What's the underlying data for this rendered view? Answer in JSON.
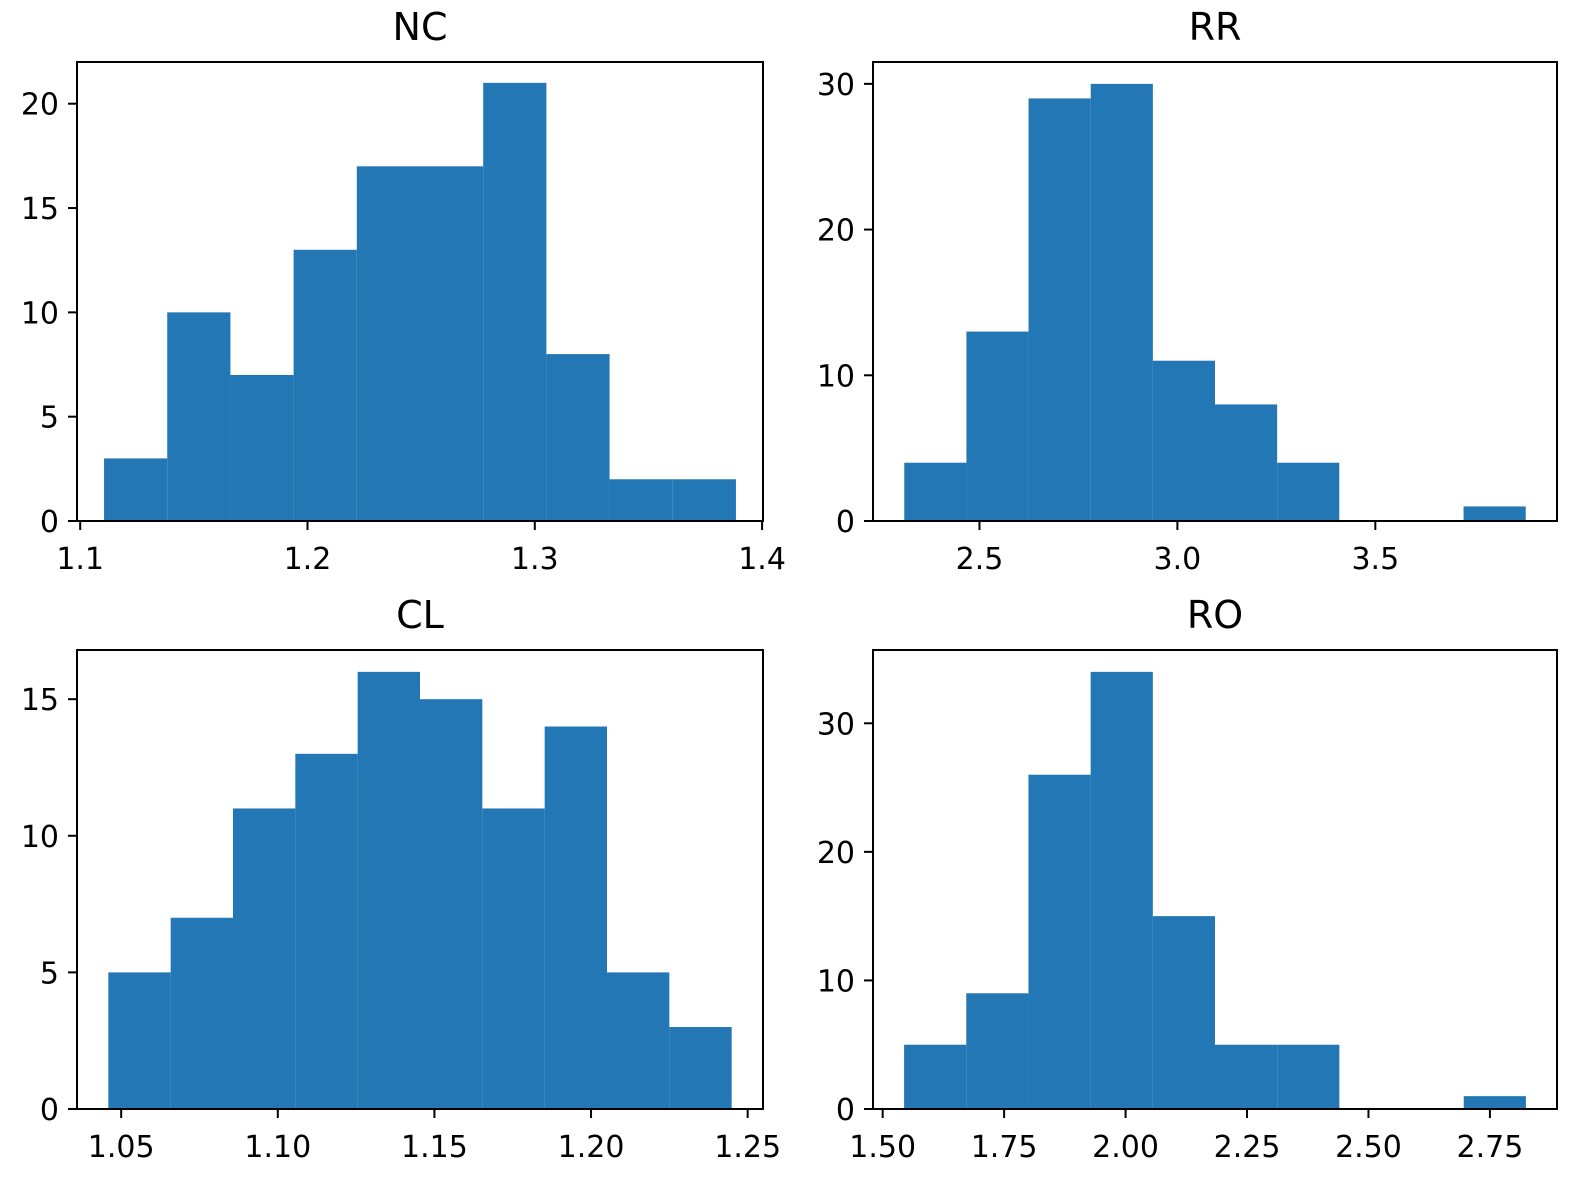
{
  "chart_data": [
    {
      "type": "bar",
      "title": "NC",
      "bin_edges": [
        1.1105,
        1.1383,
        1.1661,
        1.1939,
        1.2217,
        1.2495,
        1.2773,
        1.3051,
        1.3329,
        1.3607,
        1.3885
      ],
      "values": [
        3,
        10,
        7,
        13,
        17,
        17,
        21,
        8,
        2,
        2
      ],
      "xlim": [
        1.0986,
        1.4004
      ],
      "ylim": [
        0,
        22
      ],
      "xticks": [
        1.1,
        1.2,
        1.3,
        1.4
      ],
      "xtick_labels": [
        "1.1",
        "1.2",
        "1.3",
        "1.4"
      ],
      "yticks": [
        0,
        5,
        10,
        15,
        20
      ],
      "ytick_labels": [
        "0",
        "5",
        "10",
        "15",
        "20"
      ],
      "color": "#2277b4"
    },
    {
      "type": "bar",
      "title": "RR",
      "bin_edges": [
        2.31,
        2.467,
        2.624,
        2.781,
        2.938,
        3.095,
        3.252,
        3.409,
        3.566,
        3.723,
        3.88
      ],
      "values": [
        4,
        13,
        29,
        30,
        11,
        8,
        4,
        0,
        0,
        1
      ],
      "xlim": [
        2.231,
        3.959
      ],
      "ylim": [
        0,
        31.5
      ],
      "xticks": [
        2.5,
        3.0,
        3.5
      ],
      "xtick_labels": [
        "2.5",
        "3.0",
        "3.5"
      ],
      "yticks": [
        0,
        10,
        20,
        30
      ],
      "ytick_labels": [
        "0",
        "10",
        "20",
        "30"
      ],
      "color": "#2277b4"
    },
    {
      "type": "bar",
      "title": "CL",
      "bin_edges": [
        1.0459,
        1.0658,
        1.0857,
        1.1056,
        1.1255,
        1.1454,
        1.1653,
        1.1852,
        1.2051,
        1.225,
        1.2449
      ],
      "values": [
        5,
        7,
        11,
        13,
        16,
        15,
        11,
        14,
        5,
        3
      ],
      "xlim": [
        1.0359,
        1.2549
      ],
      "ylim": [
        0,
        16.8
      ],
      "xticks": [
        1.05,
        1.1,
        1.15,
        1.2,
        1.25
      ],
      "xtick_labels": [
        "1.05",
        "1.10",
        "1.15",
        "1.20",
        "1.25"
      ],
      "yticks": [
        0,
        5,
        10,
        15
      ],
      "ytick_labels": [
        "0",
        "5",
        "10",
        "15"
      ],
      "color": "#2277b4"
    },
    {
      "type": "bar",
      "title": "RO",
      "bin_edges": [
        1.5441,
        1.6721,
        1.8001,
        1.9281,
        2.0561,
        2.1841,
        2.3121,
        2.4401,
        2.5681,
        2.6961,
        2.8241
      ],
      "values": [
        5,
        9,
        26,
        34,
        15,
        5,
        5,
        0,
        0,
        1
      ],
      "xlim": [
        1.4801,
        2.8881
      ],
      "ylim": [
        0,
        35.7
      ],
      "xticks": [
        1.5,
        1.75,
        2.0,
        2.25,
        2.5,
        2.75
      ],
      "xtick_labels": [
        "1.50",
        "1.75",
        "2.00",
        "2.25",
        "2.50",
        "2.75"
      ],
      "yticks": [
        0,
        10,
        20,
        30
      ],
      "ytick_labels": [
        "0",
        "10",
        "20",
        "30"
      ],
      "color": "#2277b4"
    }
  ]
}
